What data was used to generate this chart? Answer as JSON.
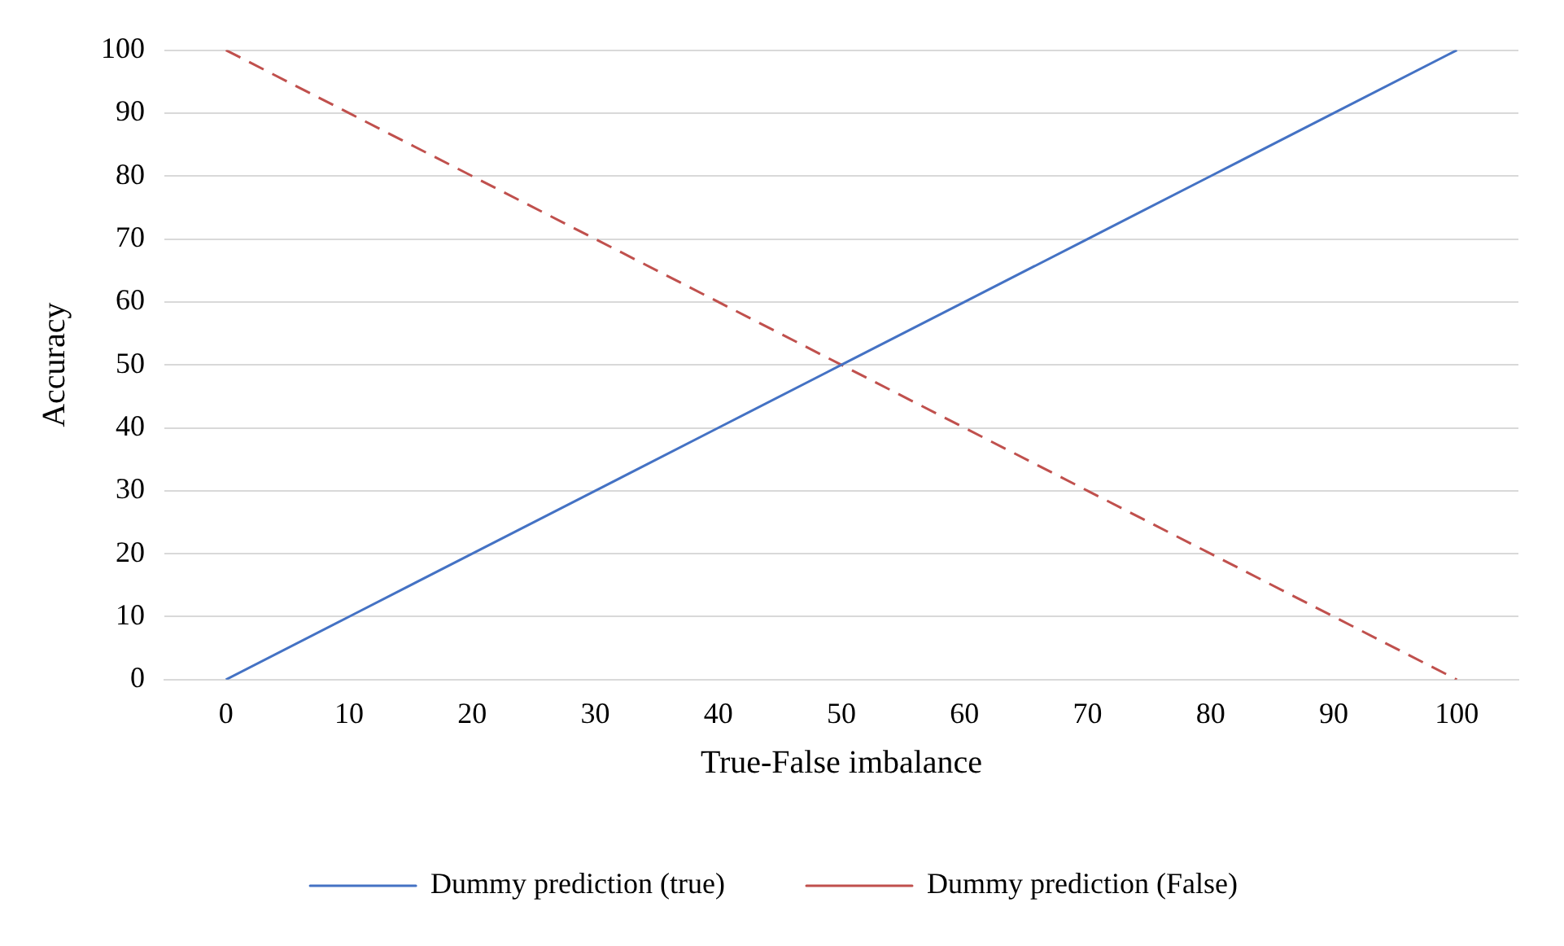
{
  "chart_data": {
    "type": "line",
    "xlabel": "True-False imbalance",
    "ylabel": "Accuracy",
    "categories": [
      "0",
      "10",
      "20",
      "30",
      "40",
      "50",
      "60",
      "70",
      "80",
      "90",
      "100"
    ],
    "series": [
      {
        "name": "Dummy prediction (true)",
        "color": "#4472c4",
        "line_style": "solid",
        "values": [
          0,
          10,
          20,
          30,
          40,
          50,
          60,
          70,
          80,
          90,
          100
        ]
      },
      {
        "name": "Dummy prediction (False)",
        "color": "#c0504d",
        "line_style": "dashed",
        "values": [
          100,
          90,
          80,
          70,
          60,
          50,
          40,
          30,
          20,
          10,
          0
        ]
      }
    ],
    "ylim": [
      0,
      100
    ],
    "yticks": [
      0,
      10,
      20,
      30,
      40,
      50,
      60,
      70,
      80,
      90,
      100
    ],
    "grid": "y",
    "legend": "bottom",
    "marker": "none"
  }
}
